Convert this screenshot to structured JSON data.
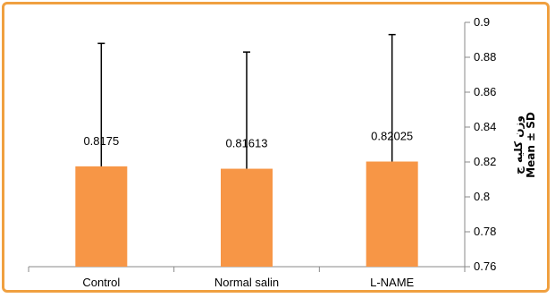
{
  "chart_data": {
    "type": "bar",
    "categories": [
      "Control",
      "Normal salin",
      "L-NAME"
    ],
    "values": [
      0.8175,
      0.81613,
      0.82025
    ],
    "value_labels": [
      "0.8175",
      "0.81613",
      "0.82025"
    ],
    "error_upper": [
      0.888,
      0.883,
      0.893
    ],
    "ylim": [
      0.76,
      0.9
    ],
    "yticks": [
      "0.76",
      "0.78",
      "0.8",
      "0.82",
      "0.84",
      "0.86",
      "0.88",
      "0.9"
    ],
    "ylabel_line1": "وزن کلیه ج",
    "ylabel_line2": "Mean ± SD",
    "y_axis_side": "right",
    "grid": false,
    "colors": {
      "bar": "#f79646",
      "frame": "#f0a040",
      "axis": "#888888"
    }
  }
}
